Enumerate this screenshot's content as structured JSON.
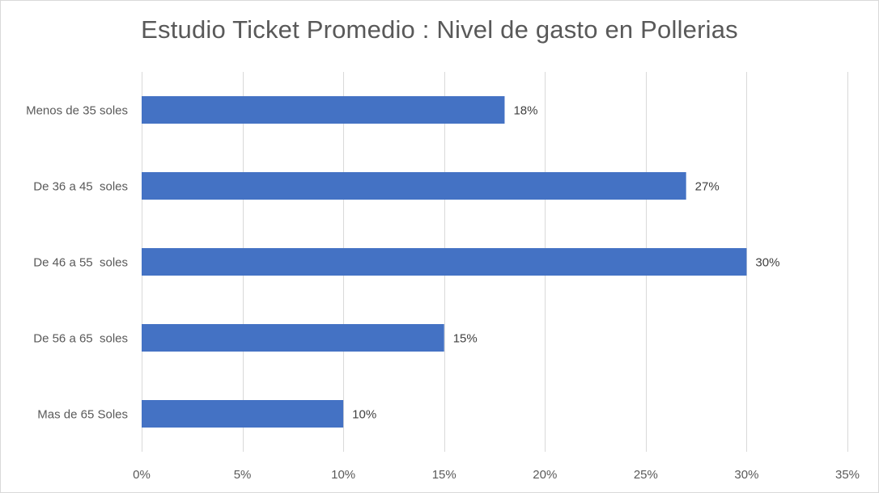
{
  "chart_data": {
    "type": "bar",
    "orientation": "horizontal",
    "title": "Estudio Ticket Promedio : Nivel de gasto en Pollerias",
    "xlabel": "",
    "ylabel": "",
    "categories": [
      "Menos de 35 soles",
      "De 36 a 45  soles",
      "De 46 a 55  soles",
      "De 56 a 65  soles",
      "Mas de 65 Soles"
    ],
    "values": [
      18,
      27,
      30,
      15,
      10
    ],
    "value_labels": [
      "18%",
      "27%",
      "30%",
      "15%",
      "10%"
    ],
    "xlim": [
      0,
      35
    ],
    "x_ticks": [
      0,
      5,
      10,
      15,
      20,
      25,
      30,
      35
    ],
    "x_tick_labels": [
      "0%",
      "5%",
      "10%",
      "15%",
      "20%",
      "25%",
      "30%",
      "35%"
    ],
    "grid": "vertical",
    "legend": "none",
    "bar_color": "#4472c4",
    "grid_color": "#d9d9d9"
  }
}
